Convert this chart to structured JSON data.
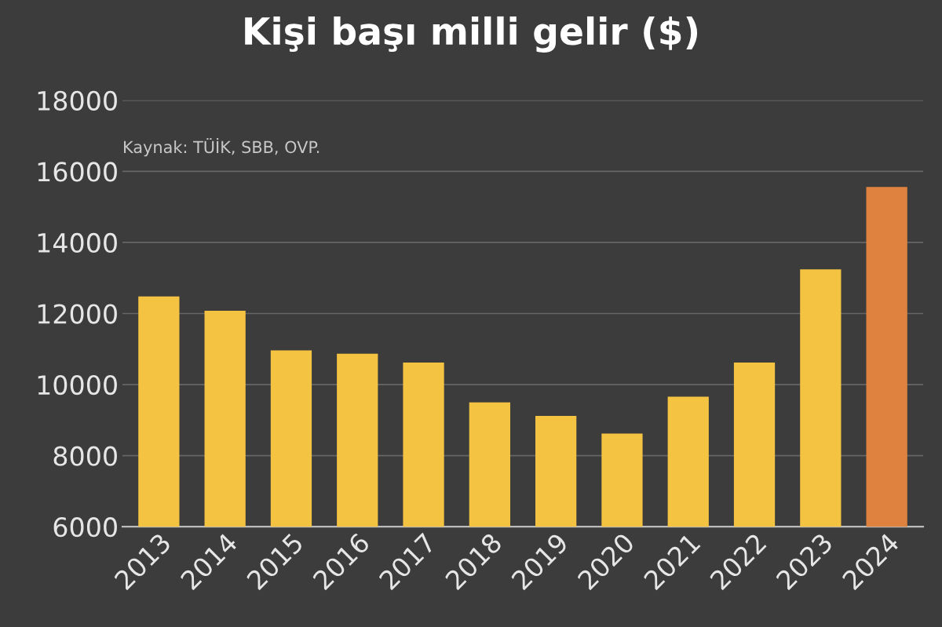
{
  "chart_data": {
    "type": "bar",
    "title": "Kişi başı milli gelir ($)",
    "categories": [
      "2013",
      "2014",
      "2015",
      "2016",
      "2017",
      "2018",
      "2019",
      "2020",
      "2021",
      "2022",
      "2023",
      "2024"
    ],
    "values": [
      12480,
      12080,
      10960,
      10870,
      10620,
      9500,
      9120,
      8620,
      9660,
      10620,
      13240,
      15560
    ],
    "colors": [
      "#f5c342",
      "#f5c342",
      "#f5c342",
      "#f5c342",
      "#f5c342",
      "#f5c342",
      "#f5c342",
      "#f5c342",
      "#f5c342",
      "#f5c342",
      "#f5c342",
      "#e0823f"
    ],
    "ylim": [
      6000,
      18000
    ],
    "yticks": [
      6000,
      8000,
      10000,
      12000,
      14000,
      16000,
      18000
    ],
    "grid": "y",
    "annotations": [
      "Kaynak: TÜİK, SBB, OVP."
    ]
  }
}
